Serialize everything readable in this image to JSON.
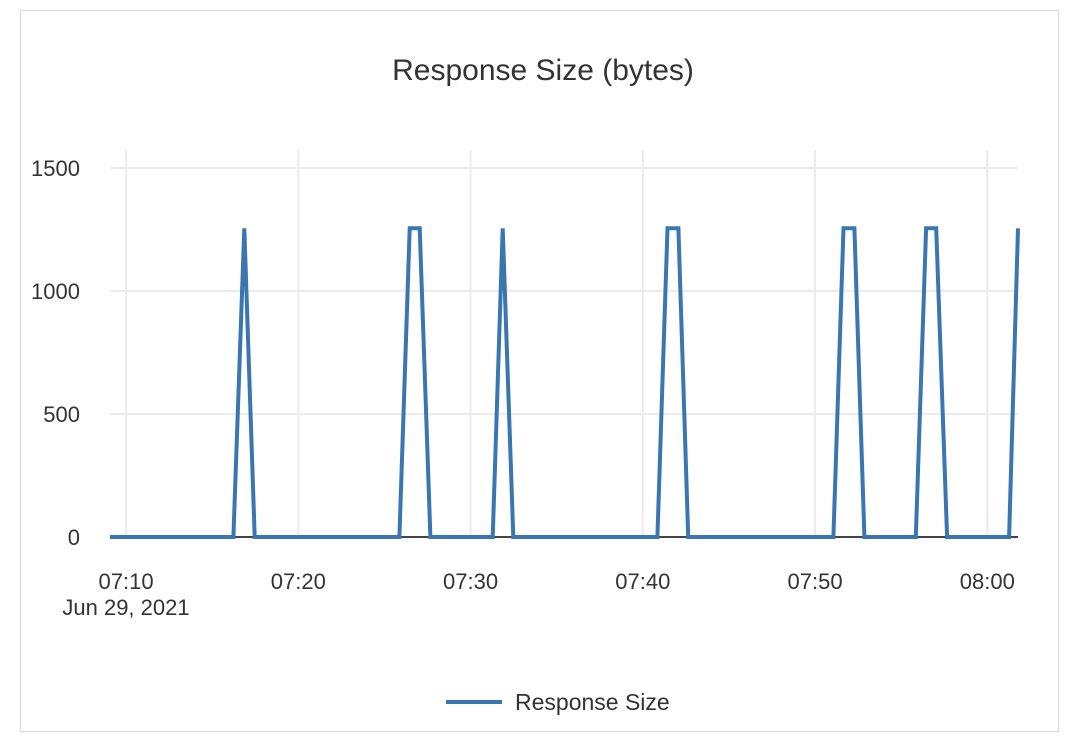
{
  "chart_data": {
    "type": "line",
    "title": "Response Size (bytes)",
    "xlabel": "",
    "ylabel": "",
    "x_tick_labels": [
      "07:10",
      "07:20",
      "07:30",
      "07:40",
      "07:50",
      "08:00"
    ],
    "x_date_label": "Jun 29, 2021",
    "y_tick_labels": [
      "0",
      "500",
      "1000",
      "1500"
    ],
    "ylim": [
      0,
      1500
    ],
    "xlim": [
      "07:09:04",
      "08:01:47"
    ],
    "grid": true,
    "legend_position": "bottom",
    "series": [
      {
        "name": "Response Size",
        "color": "#3a76b0",
        "x": [
          "07:09:04",
          "07:16:14",
          "07:16:52",
          "07:17:28",
          "07:25:52",
          "07:26:28",
          "07:27:03",
          "07:27:40",
          "07:31:17",
          "07:31:52",
          "07:32:29",
          "07:40:51",
          "07:41:26",
          "07:42:04",
          "07:42:38",
          "07:51:04",
          "07:51:39",
          "07:52:17",
          "07:52:52",
          "07:55:51",
          "07:56:27",
          "07:57:02",
          "07:57:40",
          "08:01:16",
          "08:01:47"
        ],
        "y": [
          0,
          0,
          1255,
          0,
          0,
          1255,
          1255,
          0,
          0,
          1255,
          0,
          0,
          1255,
          1255,
          0,
          0,
          1255,
          1255,
          0,
          0,
          1255,
          1255,
          0,
          0,
          1255
        ]
      }
    ]
  }
}
